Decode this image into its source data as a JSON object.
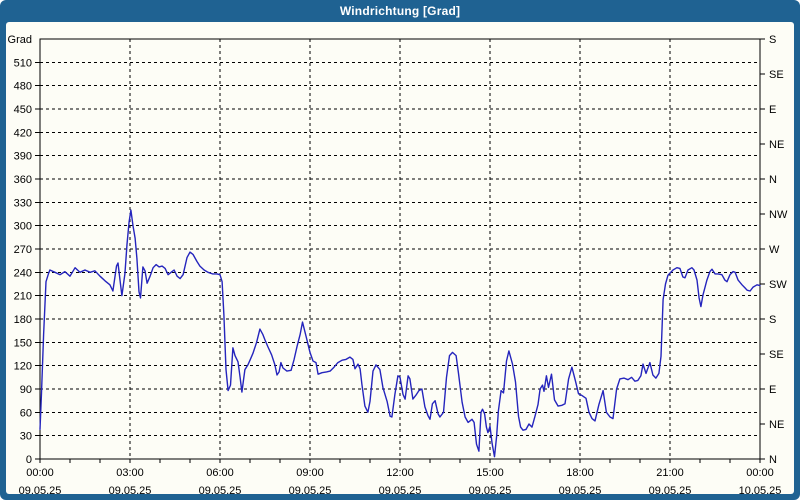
{
  "window": {
    "title": "Windrichtung [Grad]",
    "title_bar_color": "#1f6292",
    "content_background": "#fdfdf6"
  },
  "chart_data": {
    "type": "line",
    "title": "Windrichtung [Grad]",
    "xlabel": "",
    "ylabel_left": "Grad",
    "ylabel_left_top_label": "Grad",
    "ylim": [
      0,
      540
    ],
    "xlim_hours": [
      0,
      24
    ],
    "grid": {
      "horizontal_interval": 30,
      "vertical_interval_hours": 3,
      "style": "dashed",
      "on": true
    },
    "y_left_ticks": [
      0,
      30,
      60,
      90,
      120,
      150,
      180,
      210,
      240,
      270,
      300,
      330,
      360,
      390,
      420,
      450,
      480,
      510
    ],
    "y_right_ticks": [
      {
        "value": 0,
        "label": "N"
      },
      {
        "value": 45,
        "label": "NE"
      },
      {
        "value": 90,
        "label": "E"
      },
      {
        "value": 135,
        "label": "SE"
      },
      {
        "value": 180,
        "label": "S"
      },
      {
        "value": 225,
        "label": "SW"
      },
      {
        "value": 270,
        "label": "W"
      },
      {
        "value": 315,
        "label": "NW"
      },
      {
        "value": 360,
        "label": "N"
      },
      {
        "value": 405,
        "label": "NE"
      },
      {
        "value": 450,
        "label": "E"
      },
      {
        "value": 495,
        "label": "SE"
      },
      {
        "value": 540,
        "label": "S"
      }
    ],
    "x_major_ticks": [
      {
        "hour": 0,
        "time": "00:00",
        "date": "09.05.25"
      },
      {
        "hour": 3,
        "time": "03:00",
        "date": "09.05.25"
      },
      {
        "hour": 6,
        "time": "06:00",
        "date": "09.05.25"
      },
      {
        "hour": 9,
        "time": "09:00",
        "date": "09.05.25"
      },
      {
        "hour": 12,
        "time": "12:00",
        "date": "09.05.25"
      },
      {
        "hour": 15,
        "time": "15:00",
        "date": "09.05.25"
      },
      {
        "hour": 18,
        "time": "18:00",
        "date": "09.05.25"
      },
      {
        "hour": 21,
        "time": "21:00",
        "date": "09.05.25"
      },
      {
        "hour": 24,
        "time": "00:00",
        "date": "10.05.25"
      }
    ],
    "x_minor_tick_interval_hours": 1,
    "series": [
      {
        "name": "Windrichtung",
        "color": "#2525bd",
        "points": [
          [
            0,
            38
          ],
          [
            0.05,
            85
          ],
          [
            0.12,
            160
          ],
          [
            0.2,
            228
          ],
          [
            0.28,
            238
          ],
          [
            0.33,
            243
          ],
          [
            0.5,
            240
          ],
          [
            0.67,
            237
          ],
          [
            0.83,
            241
          ],
          [
            1,
            235
          ],
          [
            1.17,
            246
          ],
          [
            1.33,
            240
          ],
          [
            1.5,
            243
          ],
          [
            1.67,
            240
          ],
          [
            1.83,
            242
          ],
          [
            2,
            235
          ],
          [
            2.17,
            229
          ],
          [
            2.33,
            224
          ],
          [
            2.43,
            216
          ],
          [
            2.55,
            248
          ],
          [
            2.6,
            252
          ],
          [
            2.67,
            229
          ],
          [
            2.73,
            210
          ],
          [
            2.83,
            238
          ],
          [
            2.9,
            276
          ],
          [
            2.97,
            305
          ],
          [
            3.03,
            320
          ],
          [
            3.1,
            300
          ],
          [
            3.17,
            284
          ],
          [
            3.23,
            258
          ],
          [
            3.3,
            215
          ],
          [
            3.35,
            207
          ],
          [
            3.43,
            247
          ],
          [
            3.5,
            242
          ],
          [
            3.57,
            226
          ],
          [
            3.67,
            235
          ],
          [
            3.77,
            246
          ],
          [
            3.87,
            250
          ],
          [
            3.97,
            247
          ],
          [
            4.07,
            248
          ],
          [
            4.17,
            245
          ],
          [
            4.27,
            237
          ],
          [
            4.37,
            240
          ],
          [
            4.47,
            243
          ],
          [
            4.57,
            235
          ],
          [
            4.67,
            232
          ],
          [
            4.77,
            237
          ],
          [
            4.9,
            259
          ],
          [
            5,
            266
          ],
          [
            5.1,
            263
          ],
          [
            5.23,
            254
          ],
          [
            5.33,
            248
          ],
          [
            5.47,
            243
          ],
          [
            5.6,
            240
          ],
          [
            5.75,
            238
          ],
          [
            5.9,
            238
          ],
          [
            6,
            237
          ],
          [
            6.07,
            228
          ],
          [
            6.13,
            185
          ],
          [
            6.2,
            115
          ],
          [
            6.27,
            88
          ],
          [
            6.35,
            95
          ],
          [
            6.43,
            143
          ],
          [
            6.5,
            133
          ],
          [
            6.6,
            125
          ],
          [
            6.67,
            105
          ],
          [
            6.73,
            86
          ],
          [
            6.83,
            115
          ],
          [
            6.93,
            121
          ],
          [
            7,
            127
          ],
          [
            7.1,
            136
          ],
          [
            7.22,
            150
          ],
          [
            7.33,
            167
          ],
          [
            7.43,
            160
          ],
          [
            7.5,
            153
          ],
          [
            7.6,
            144
          ],
          [
            7.72,
            134
          ],
          [
            7.83,
            121
          ],
          [
            7.9,
            108
          ],
          [
            7.97,
            112
          ],
          [
            8.03,
            124
          ],
          [
            8.1,
            117
          ],
          [
            8.23,
            113
          ],
          [
            8.37,
            114
          ],
          [
            8.47,
            128
          ],
          [
            8.57,
            145
          ],
          [
            8.67,
            160
          ],
          [
            8.75,
            176
          ],
          [
            8.88,
            156
          ],
          [
            9,
            137
          ],
          [
            9.1,
            126
          ],
          [
            9.2,
            124
          ],
          [
            9.27,
            109
          ],
          [
            9.4,
            111
          ],
          [
            9.55,
            112
          ],
          [
            9.67,
            113
          ],
          [
            9.8,
            118
          ],
          [
            9.93,
            124
          ],
          [
            10.07,
            127
          ],
          [
            10.2,
            128
          ],
          [
            10.33,
            131
          ],
          [
            10.43,
            128
          ],
          [
            10.5,
            116
          ],
          [
            10.6,
            122
          ],
          [
            10.67,
            116
          ],
          [
            10.73,
            96
          ],
          [
            10.83,
            68
          ],
          [
            10.93,
            60
          ],
          [
            11,
            74
          ],
          [
            11.1,
            113
          ],
          [
            11.2,
            121
          ],
          [
            11.33,
            115
          ],
          [
            11.43,
            92
          ],
          [
            11.57,
            74
          ],
          [
            11.67,
            55
          ],
          [
            11.73,
            54
          ],
          [
            11.83,
            83
          ],
          [
            11.93,
            107
          ],
          [
            12,
            105
          ],
          [
            12.1,
            83
          ],
          [
            12.17,
            77
          ],
          [
            12.27,
            107
          ],
          [
            12.33,
            103
          ],
          [
            12.43,
            77
          ],
          [
            12.53,
            82
          ],
          [
            12.63,
            88
          ],
          [
            12.73,
            90
          ],
          [
            12.83,
            67
          ],
          [
            12.93,
            56
          ],
          [
            13,
            51
          ],
          [
            13.08,
            71
          ],
          [
            13.17,
            75
          ],
          [
            13.27,
            58
          ],
          [
            13.33,
            54
          ],
          [
            13.45,
            60
          ],
          [
            13.55,
            105
          ],
          [
            13.65,
            133
          ],
          [
            13.75,
            137
          ],
          [
            13.87,
            133
          ],
          [
            13.95,
            110
          ],
          [
            14.07,
            73
          ],
          [
            14.17,
            54
          ],
          [
            14.27,
            47
          ],
          [
            14.4,
            51
          ],
          [
            14.47,
            47
          ],
          [
            14.55,
            19
          ],
          [
            14.63,
            10
          ],
          [
            14.7,
            60
          ],
          [
            14.75,
            64
          ],
          [
            14.82,
            58
          ],
          [
            14.88,
            41
          ],
          [
            14.93,
            34
          ],
          [
            15,
            42
          ],
          [
            15.07,
            20
          ],
          [
            15.15,
            3
          ],
          [
            15.22,
            29
          ],
          [
            15.28,
            62
          ],
          [
            15.37,
            88
          ],
          [
            15.45,
            85
          ],
          [
            15.55,
            126
          ],
          [
            15.63,
            139
          ],
          [
            15.75,
            122
          ],
          [
            15.85,
            99
          ],
          [
            15.95,
            55
          ],
          [
            16.02,
            41
          ],
          [
            16.1,
            37
          ],
          [
            16.2,
            38
          ],
          [
            16.3,
            45
          ],
          [
            16.4,
            41
          ],
          [
            16.5,
            55
          ],
          [
            16.6,
            70
          ],
          [
            16.67,
            90
          ],
          [
            16.75,
            95
          ],
          [
            16.8,
            87
          ],
          [
            16.88,
            107
          ],
          [
            16.95,
            92
          ],
          [
            17.05,
            109
          ],
          [
            17.15,
            76
          ],
          [
            17.27,
            68
          ],
          [
            17.4,
            69
          ],
          [
            17.5,
            71
          ],
          [
            17.62,
            103
          ],
          [
            17.73,
            118
          ],
          [
            17.85,
            100
          ],
          [
            17.95,
            84
          ],
          [
            18.05,
            82
          ],
          [
            18.2,
            78
          ],
          [
            18.3,
            60
          ],
          [
            18.4,
            52
          ],
          [
            18.5,
            49
          ],
          [
            18.63,
            70
          ],
          [
            18.77,
            88
          ],
          [
            18.88,
            60
          ],
          [
            19,
            54
          ],
          [
            19.1,
            52
          ],
          [
            19.22,
            90
          ],
          [
            19.33,
            103
          ],
          [
            19.47,
            104
          ],
          [
            19.6,
            102
          ],
          [
            19.72,
            105
          ],
          [
            19.83,
            100
          ],
          [
            19.93,
            101
          ],
          [
            20.03,
            107
          ],
          [
            20.1,
            122
          ],
          [
            20.2,
            110
          ],
          [
            20.33,
            124
          ],
          [
            20.43,
            108
          ],
          [
            20.53,
            104
          ],
          [
            20.63,
            110
          ],
          [
            20.7,
            132
          ],
          [
            20.77,
            205
          ],
          [
            20.85,
            225
          ],
          [
            20.93,
            236
          ],
          [
            21,
            239
          ],
          [
            21.1,
            243
          ],
          [
            21.23,
            246
          ],
          [
            21.33,
            245
          ],
          [
            21.43,
            234
          ],
          [
            21.5,
            233
          ],
          [
            21.6,
            243
          ],
          [
            21.73,
            246
          ],
          [
            21.8,
            243
          ],
          [
            21.9,
            230
          ],
          [
            21.97,
            207
          ],
          [
            22.03,
            196
          ],
          [
            22.1,
            211
          ],
          [
            22.23,
            230
          ],
          [
            22.33,
            241
          ],
          [
            22.4,
            244
          ],
          [
            22.5,
            238
          ],
          [
            22.6,
            238
          ],
          [
            22.73,
            237
          ],
          [
            22.83,
            230
          ],
          [
            22.9,
            228
          ],
          [
            23,
            237
          ],
          [
            23.1,
            241
          ],
          [
            23.17,
            240
          ],
          [
            23.27,
            230
          ],
          [
            23.4,
            224
          ],
          [
            23.5,
            220
          ],
          [
            23.57,
            217
          ],
          [
            23.67,
            216
          ],
          [
            23.77,
            221
          ],
          [
            23.9,
            224
          ],
          [
            24,
            223
          ]
        ]
      }
    ]
  }
}
